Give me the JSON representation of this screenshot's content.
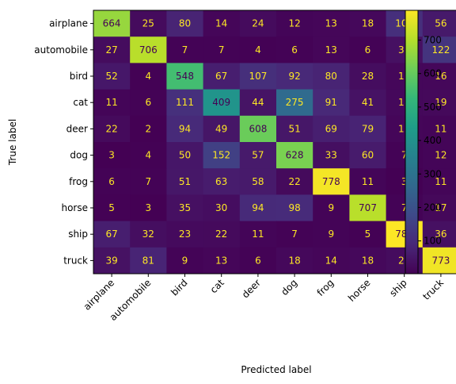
{
  "chart_data": {
    "type": "heatmap",
    "title": "",
    "xlabel": "Predicted label",
    "ylabel": "True label",
    "x_categories": [
      "airplane",
      "automobile",
      "bird",
      "cat",
      "deer",
      "dog",
      "frog",
      "horse",
      "ship",
      "truck"
    ],
    "y_categories": [
      "airplane",
      "automobile",
      "bird",
      "cat",
      "deer",
      "dog",
      "frog",
      "horse",
      "ship",
      "truck"
    ],
    "values": [
      [
        664,
        25,
        80,
        14,
        24,
        12,
        13,
        18,
        109,
        56
      ],
      [
        27,
        706,
        7,
        7,
        4,
        6,
        13,
        6,
        35,
        122
      ],
      [
        52,
        4,
        548,
        67,
        107,
        92,
        80,
        28,
        16,
        16
      ],
      [
        11,
        6,
        111,
        409,
        44,
        275,
        91,
        41,
        18,
        19
      ],
      [
        22,
        2,
        94,
        49,
        608,
        51,
        69,
        79,
        13,
        11
      ],
      [
        3,
        4,
        50,
        152,
        57,
        628,
        33,
        60,
        7,
        12
      ],
      [
        6,
        7,
        51,
        63,
        58,
        22,
        778,
        11,
        3,
        11
      ],
      [
        5,
        3,
        35,
        30,
        94,
        98,
        9,
        707,
        7,
        17
      ],
      [
        67,
        32,
        23,
        22,
        11,
        7,
        9,
        5,
        789,
        36
      ],
      [
        39,
        81,
        9,
        13,
        6,
        18,
        14,
        18,
        26,
        773
      ]
    ],
    "colormap": "viridis",
    "value_range": [
      2,
      789
    ],
    "colorbar_ticks": [
      100,
      200,
      300,
      400,
      500,
      600,
      700
    ],
    "text_color_light": "#fde725",
    "text_color_dark": "#440154",
    "grid": false
  }
}
